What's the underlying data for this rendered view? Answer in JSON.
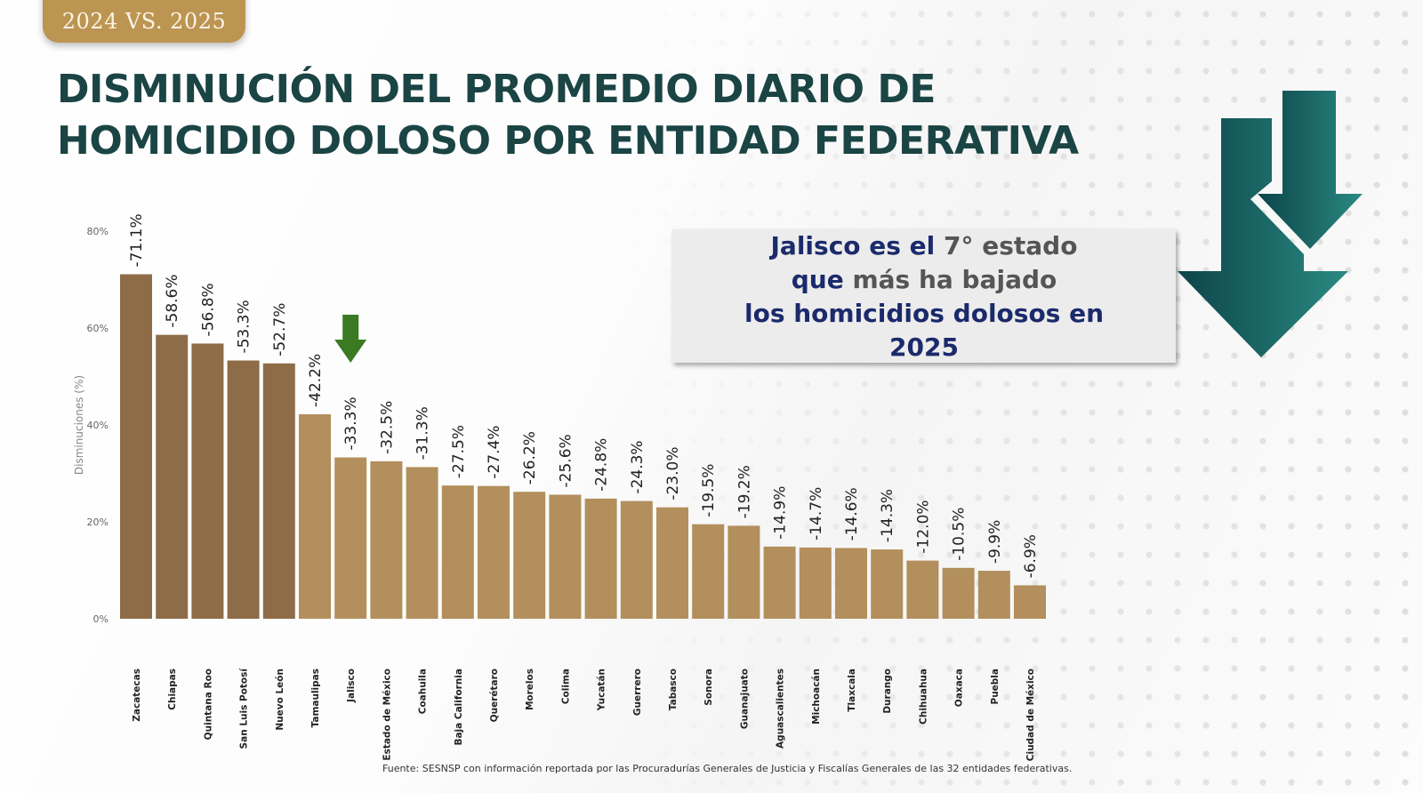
{
  "header": {
    "tag_label": "2024 VS. 2025",
    "title_line1": "DISMINUCIÓN DEL PROMEDIO DIARIO DE",
    "title_line2": "HOMICIDIO DOLOSO POR ENTIDAD FEDERATIVA"
  },
  "callout": {
    "line1_a": "Jalisco es el ",
    "line1_b": "7° estado",
    "line2_a": "que ",
    "line2_b": "más ha bajado",
    "line3": "los homicidios dolosos en",
    "line4": "2025"
  },
  "source_note": "Fuente: SESNSP con información reportada por las Procuradurías Generales de Justicia y Fiscalías Generales de las 32 entidades federativas.",
  "colors": {
    "bar_dark": "#8e6c47",
    "bar_light": "#b28f5c",
    "title": "#1b4444",
    "highlight_arrow": "#3a7a23",
    "callout_text": "#1b2a6b",
    "teal_arrow_dark": "#0f4a4f",
    "teal_arrow_light": "#2a8a82"
  },
  "icons": {
    "highlight": "arrow-down-icon",
    "decorative": "double-arrow-down-icon"
  },
  "chart_data": {
    "type": "bar",
    "title": "Disminución del promedio diario de homicidio doloso por entidad federativa",
    "xlabel": "",
    "ylabel": "Disminuciones (%)",
    "ylim": [
      0,
      80
    ],
    "yticks": [
      0,
      20,
      40,
      60,
      80
    ],
    "ytick_labels": [
      "0%",
      "20%",
      "40%",
      "60%",
      "80%"
    ],
    "grid": false,
    "highlight_category": "Jalisco",
    "dark_bar_count": 5,
    "categories": [
      "Zacatecas",
      "Chiapas",
      "Quintana Roo",
      "San Luis Potosí",
      "Nuevo León",
      "Tamaulipas",
      "Jalisco",
      "Estado de México",
      "Coahuila",
      "Baja California",
      "Querétaro",
      "Morelos",
      "Colima",
      "Yucatán",
      "Guerrero",
      "Tabasco",
      "Sonora",
      "Guanajuato",
      "Aguascalientes",
      "Michoacán",
      "Tlaxcala",
      "Durango",
      "Chihuahua",
      "Oaxaca",
      "Puebla",
      "Ciudad de México"
    ],
    "values": [
      71.1,
      58.6,
      56.8,
      53.3,
      52.7,
      42.2,
      33.3,
      32.5,
      31.3,
      27.5,
      27.4,
      26.2,
      25.6,
      24.8,
      24.3,
      23.0,
      19.5,
      19.2,
      14.9,
      14.7,
      14.6,
      14.3,
      12.0,
      10.5,
      9.9,
      6.9
    ],
    "data_labels": [
      "-71.1%",
      "-58.6%",
      "-56.8%",
      "-53.3%",
      "-52.7%",
      "-42.2%",
      "-33.3%",
      "-32.5%",
      "-31.3%",
      "-27.5%",
      "-27.4%",
      "-26.2%",
      "-25.6%",
      "-24.8%",
      "-24.3%",
      "-23.0%",
      "-19.5%",
      "-19.2%",
      "-14.9%",
      "-14.7%",
      "-14.6%",
      "-14.3%",
      "-12.0%",
      "-10.5%",
      "-9.9%",
      "-6.9%"
    ]
  }
}
